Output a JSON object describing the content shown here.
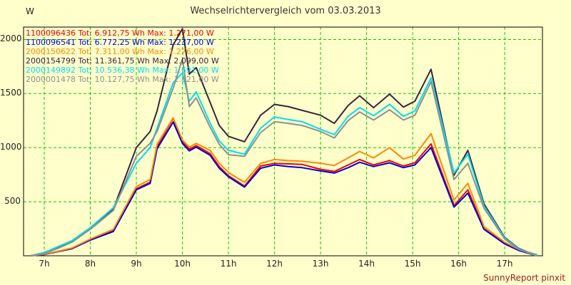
{
  "chart": {
    "title": "Wechselrichtervergleich vom 03.03.2013",
    "y_unit": "W",
    "footer": "SunnyReport pinxit",
    "colors": {
      "background": "#FFFFCC",
      "grid": "#00CC00",
      "frame": "#000000",
      "title_text": "#333333",
      "footer_text": "#992222"
    }
  },
  "chart_data": {
    "type": "line",
    "title": "Wechselrichtervergleich vom 03.03.2013",
    "xlabel": "",
    "ylabel": "W",
    "xlim": [
      6.55,
      17.82
    ],
    "ylim": [
      0,
      2115
    ],
    "x_ticks": [
      7,
      8,
      9,
      10,
      11,
      12,
      13,
      14,
      15,
      16,
      17
    ],
    "x_tick_labels": [
      "7h",
      "8h",
      "9h",
      "10h",
      "11h",
      "12h",
      "13h",
      "14h",
      "15h",
      "16h",
      "17h"
    ],
    "y_ticks": [
      500,
      1000,
      1500,
      2000
    ],
    "grid": "dashed-green-both-axes",
    "legend_position": "top-left-inside",
    "x": [
      6.7,
      7.0,
      7.3,
      7.6,
      8.0,
      8.5,
      9.0,
      9.3,
      9.45,
      9.8,
      10.0,
      10.15,
      10.3,
      10.6,
      10.8,
      11.0,
      11.35,
      11.7,
      12.0,
      12.3,
      12.6,
      13.0,
      13.3,
      13.6,
      13.85,
      14.15,
      14.5,
      14.8,
      15.05,
      15.4,
      15.9,
      16.2,
      16.55,
      17.0,
      17.3,
      17.7
    ],
    "series": [
      {
        "name": "1100096436",
        "label": "1100096436 Tot: 6.912,75 Wh Max: 1.271,00 W",
        "total_wh": "6.912,75",
        "max_w": "1.271,00",
        "color": "#EE0000",
        "values": [
          0,
          15,
          40,
          70,
          150,
          230,
          620,
          680,
          1010,
          1271,
          1060,
          985,
          1020,
          945,
          825,
          740,
          645,
          830,
          855,
          850,
          845,
          800,
          780,
          840,
          890,
          840,
          880,
          830,
          860,
          1035,
          465,
          610,
          250,
          115,
          55,
          0
        ]
      },
      {
        "name": "1100096541",
        "label": "1100096541 Tot: 6.772,25 Wh Max: 1.237,00 W",
        "total_wh": "6.772,25",
        "max_w": "1.237,00",
        "color": "#0000DD",
        "values": [
          0,
          12,
          38,
          65,
          145,
          225,
          610,
          670,
          990,
          1237,
          1040,
          970,
          1005,
          930,
          810,
          730,
          635,
          810,
          840,
          825,
          815,
          785,
          765,
          815,
          865,
          825,
          860,
          815,
          840,
          1000,
          450,
          580,
          245,
          110,
          50,
          0
        ]
      },
      {
        "name": "2000150622",
        "label": "2000150622 Tot: 7.311,00 Wh Max: 1.276,00 W",
        "total_wh": "7.311,00",
        "max_w": "1.276,00",
        "color": "#FF8800",
        "values": [
          0,
          15,
          42,
          72,
          155,
          245,
          640,
          705,
          1030,
          1276,
          1070,
          1005,
          1040,
          975,
          855,
          770,
          680,
          855,
          890,
          880,
          875,
          855,
          835,
          905,
          965,
          905,
          1000,
          895,
          930,
          1130,
          515,
          670,
          270,
          125,
          60,
          0
        ]
      },
      {
        "name": "2000154799",
        "label": "2000154799 Tot: 11.361,75 Wh Max: 2.099,00 W",
        "total_wh": "11.361,75",
        "max_w": "2.099,00",
        "color": "#39243E",
        "values": [
          0,
          25,
          75,
          130,
          255,
          430,
          1000,
          1150,
          1340,
          1950,
          2099,
          1680,
          1740,
          1420,
          1205,
          1105,
          1055,
          1300,
          1400,
          1380,
          1345,
          1300,
          1225,
          1390,
          1480,
          1370,
          1495,
          1375,
          1430,
          1725,
          745,
          975,
          480,
          170,
          70,
          0
        ]
      },
      {
        "name": "2000149892",
        "label": "2000149892 Tot: 10.536,38 Wh Max: 1.691,00 W",
        "total_wh": "10.536,38",
        "max_w": "1.691,00",
        "color": "#00DDEE",
        "values": [
          0,
          30,
          85,
          140,
          260,
          445,
          855,
          1000,
          1180,
          1600,
          1691,
          1430,
          1515,
          1230,
          1060,
          975,
          940,
          1180,
          1285,
          1260,
          1240,
          1170,
          1120,
          1290,
          1370,
          1295,
          1400,
          1290,
          1340,
          1645,
          765,
          940,
          460,
          165,
          65,
          0
        ]
      },
      {
        "name": "2000001478",
        "label": "2000001478 Tot: 10.127,75 Wh Max: 1.821,00 W",
        "total_wh": "10.127,75",
        "max_w": "1.821,00",
        "color": "#8F8F8F",
        "values": [
          0,
          20,
          70,
          125,
          245,
          420,
          920,
          1040,
          1150,
          1550,
          1821,
          1380,
          1460,
          1190,
          1030,
          935,
          920,
          1140,
          1240,
          1225,
          1205,
          1150,
          1090,
          1250,
          1330,
          1255,
          1350,
          1255,
          1300,
          1610,
          705,
          855,
          440,
          155,
          60,
          10
        ]
      }
    ]
  }
}
